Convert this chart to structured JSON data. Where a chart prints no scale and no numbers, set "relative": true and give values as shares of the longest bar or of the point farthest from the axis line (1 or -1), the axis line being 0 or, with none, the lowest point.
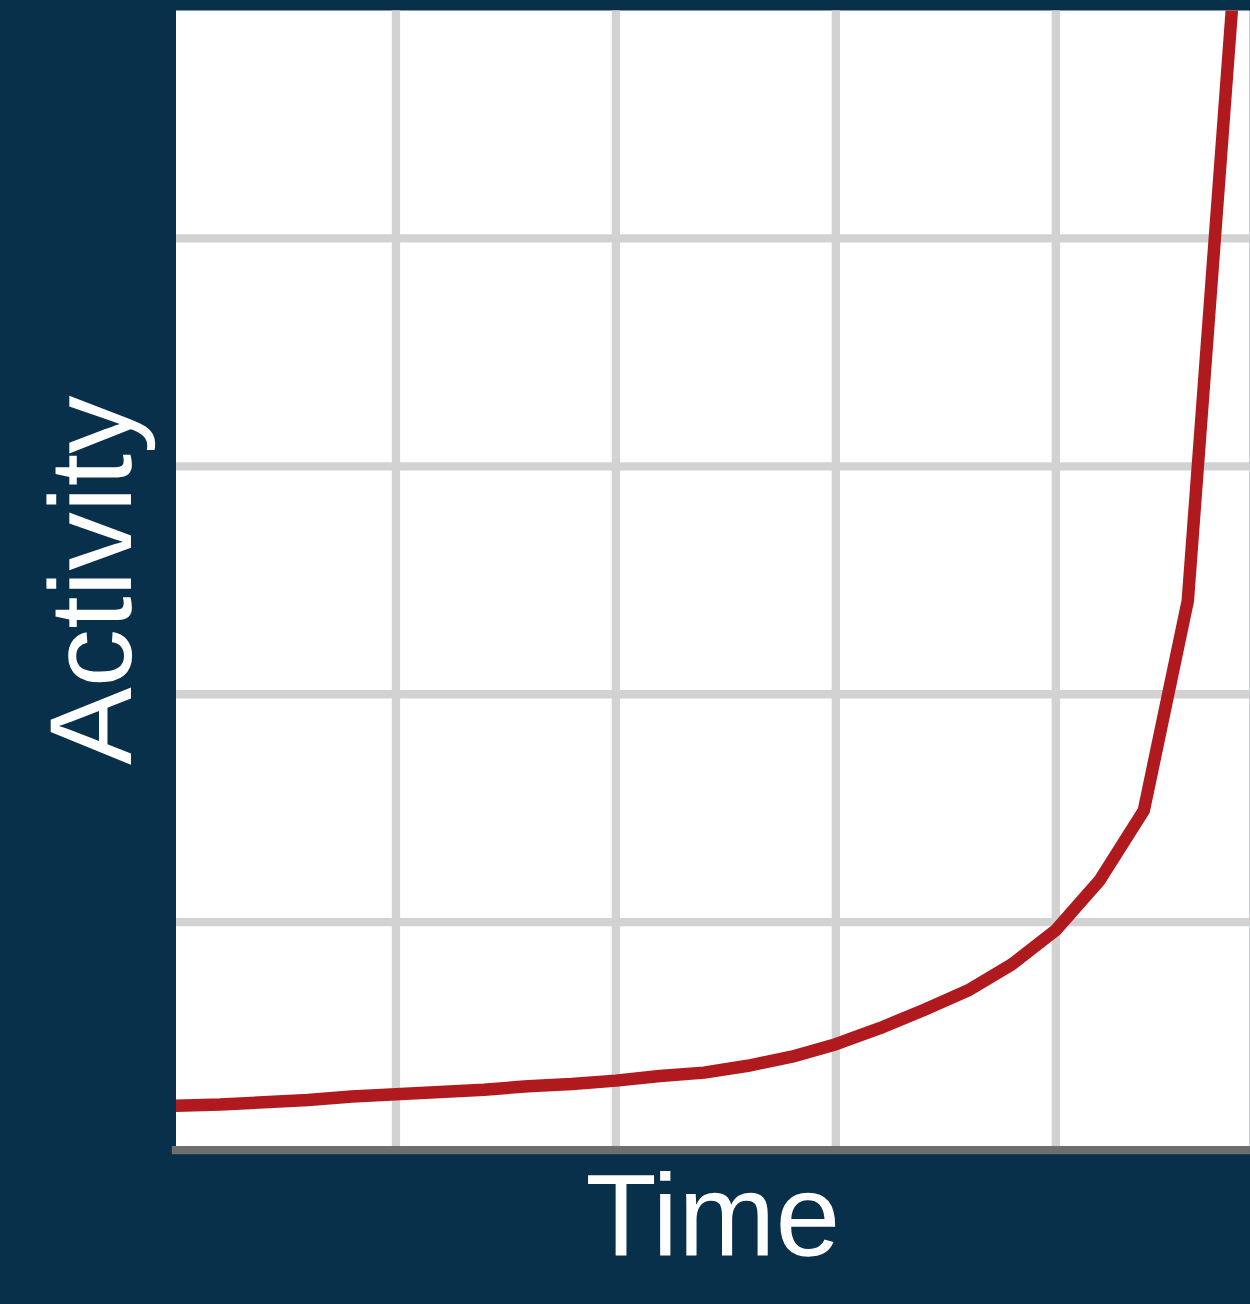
{
  "chart_data": {
    "type": "line",
    "xlabel": "Time",
    "ylabel": "Activity",
    "relative": true,
    "grid": true,
    "categories": [
      null,
      null,
      null,
      null,
      null,
      null,
      null,
      null,
      null,
      null,
      null,
      null,
      null,
      null,
      null,
      null,
      null,
      null,
      null,
      null,
      null,
      null,
      null,
      null,
      null
    ],
    "series": [
      {
        "color": "#b0191e",
        "values": [
          0.039,
          0.04,
          0.042,
          0.044,
          0.047,
          0.049,
          0.051,
          0.053,
          0.056,
          0.058,
          0.061,
          0.065,
          0.068,
          0.074,
          0.082,
          0.093,
          0.107,
          0.123,
          0.14,
          0.163,
          0.193,
          0.237,
          0.298,
          0.482,
          1.0
        ]
      }
    ]
  }
}
